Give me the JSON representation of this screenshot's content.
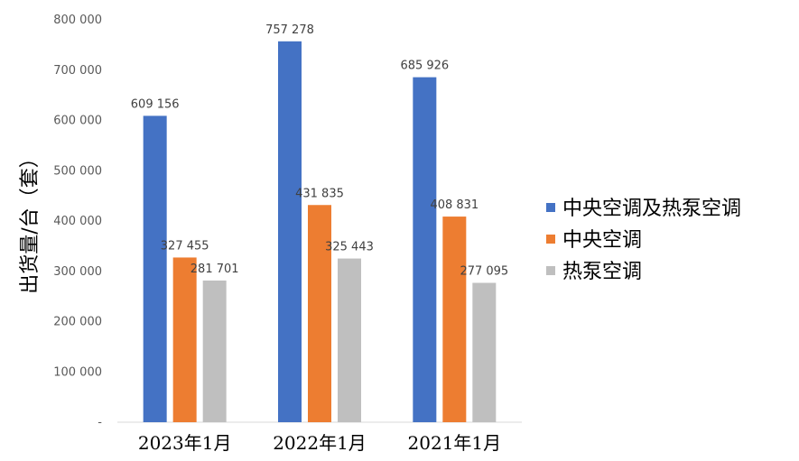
{
  "chart_data": {
    "type": "bar",
    "categories": [
      "2023年1月",
      "2022年1月",
      "2021年1月"
    ],
    "series": [
      {
        "name": "中央空调及热泵空调",
        "color": "#4472C4",
        "values": [
          609156,
          757278,
          685926
        ],
        "labels": [
          "609 156",
          "757 278",
          "685 926"
        ]
      },
      {
        "name": "中央空调",
        "color": "#ED7D31",
        "values": [
          327455,
          431835,
          408831
        ],
        "labels": [
          "327 455",
          "431 835",
          "408 831"
        ]
      },
      {
        "name": "热泵空调",
        "color": "#BFBFBF",
        "values": [
          281701,
          325443,
          277095
        ],
        "labels": [
          "281 701",
          "325 443",
          "277 095"
        ]
      }
    ],
    "ylabel": "出货量/台（套）",
    "ylim": [
      0,
      800000
    ],
    "yticks": [
      0,
      100000,
      200000,
      300000,
      400000,
      500000,
      600000,
      700000,
      800000
    ],
    "ytick_labels": [
      "-",
      "100 000",
      "200 000",
      "300 000",
      "400 000",
      "500 000",
      "600 000",
      "700 000",
      "800 000"
    ],
    "grid": false,
    "legend_position": "right"
  }
}
